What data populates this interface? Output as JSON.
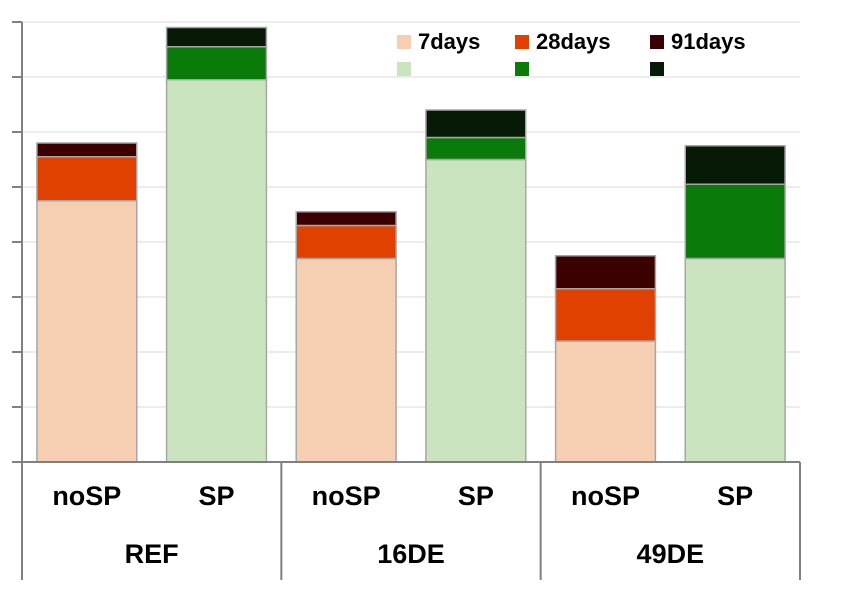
{
  "chart_data": {
    "type": "bar",
    "stacked": true,
    "title": "",
    "xlabel": "",
    "ylabel": "",
    "ylim": [
      0,
      8
    ],
    "y_ticks_count": 8,
    "y_tick_labels_shown": false,
    "grid": true,
    "legend_position": "top-right",
    "groups": [
      {
        "label": "REF",
        "categories": [
          "noSP",
          "SP"
        ]
      },
      {
        "label": "16DE",
        "categories": [
          "noSP",
          "SP"
        ]
      },
      {
        "label": "49DE",
        "categories": [
          "noSP",
          "SP"
        ]
      }
    ],
    "bars": [
      {
        "group": "REF",
        "category": "noSP",
        "palette": "orange",
        "values": [
          4.75,
          0.8,
          0.25
        ]
      },
      {
        "group": "REF",
        "category": "SP",
        "palette": "green",
        "values": [
          6.95,
          0.6,
          0.35
        ]
      },
      {
        "group": "16DE",
        "category": "noSP",
        "palette": "orange",
        "values": [
          3.7,
          0.6,
          0.25
        ]
      },
      {
        "group": "16DE",
        "category": "SP",
        "palette": "green",
        "values": [
          5.5,
          0.4,
          0.5
        ]
      },
      {
        "group": "49DE",
        "category": "noSP",
        "palette": "orange",
        "values": [
          2.2,
          0.95,
          0.6
        ]
      },
      {
        "group": "49DE",
        "category": "SP",
        "palette": "green",
        "values": [
          3.7,
          1.35,
          0.7
        ]
      }
    ],
    "series": [
      {
        "name": "7days",
        "colors": {
          "orange": "#f6ceb1",
          "green": "#c9e4bf"
        }
      },
      {
        "name": "28days",
        "colors": {
          "orange": "#e04000",
          "green": "#0a7a0a"
        }
      },
      {
        "name": "91days",
        "colors": {
          "orange": "#3b0000",
          "green": "#061a06"
        }
      }
    ]
  }
}
